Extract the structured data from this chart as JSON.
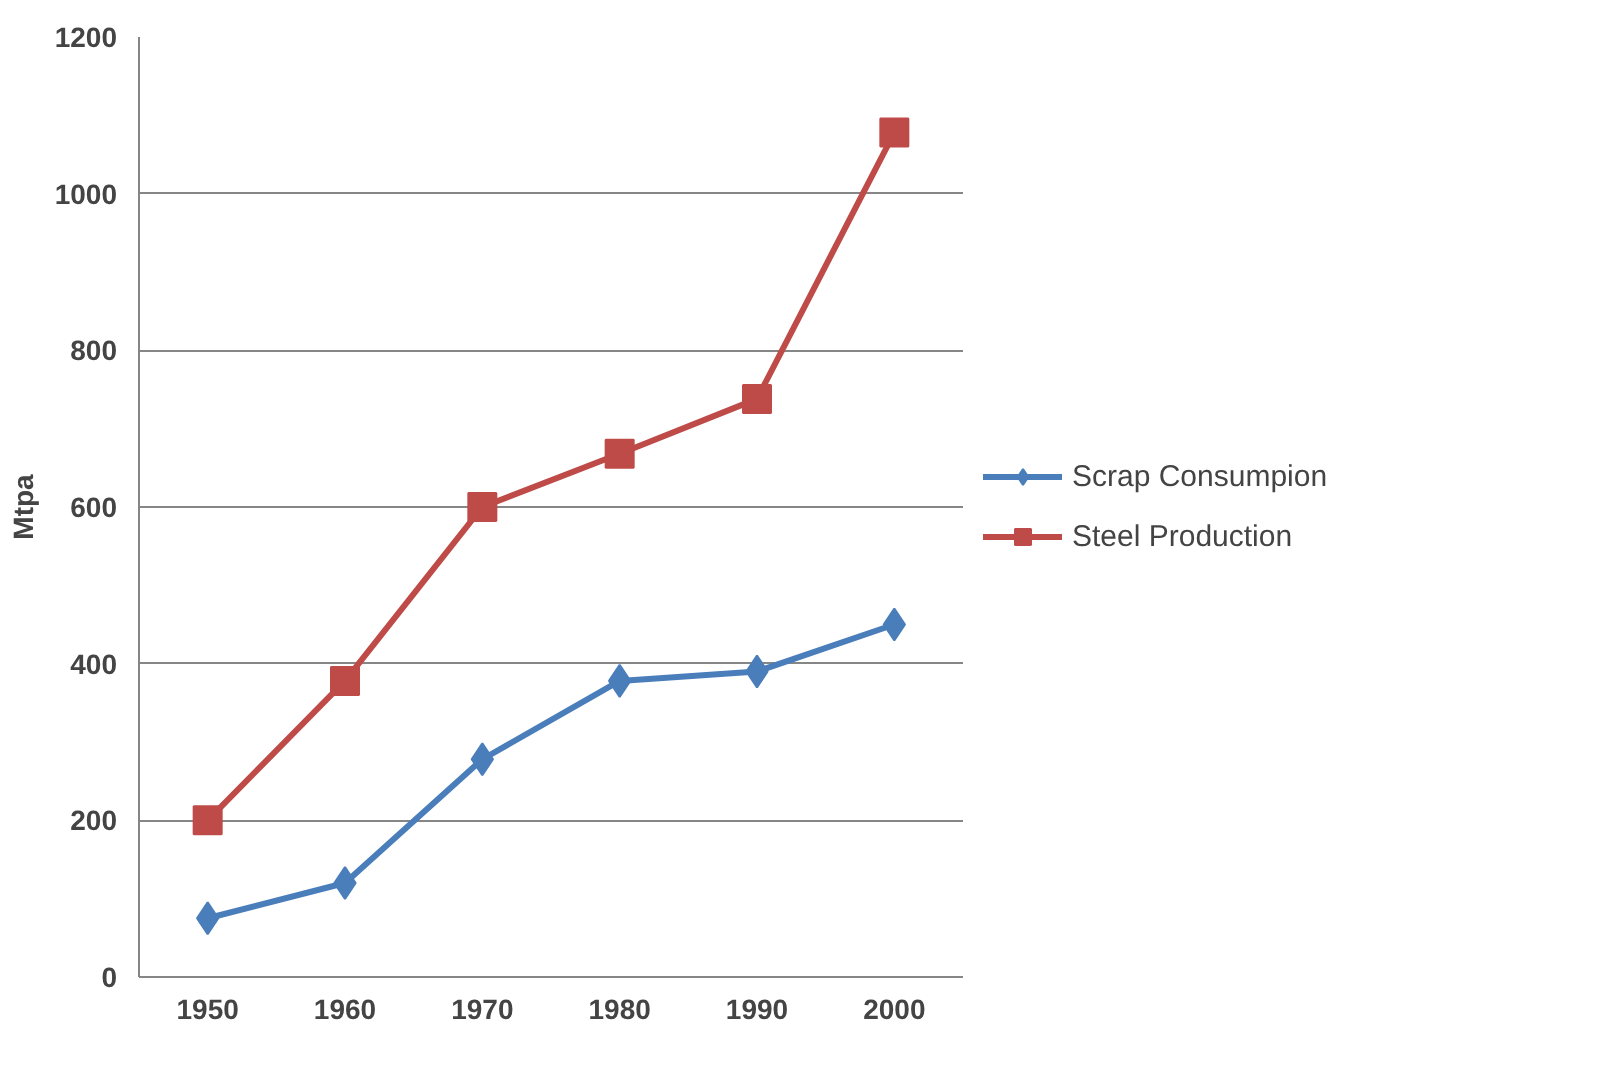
{
  "chart_data": {
    "type": "line",
    "ylabel": "Mtpa",
    "categories": [
      "1950",
      "1960",
      "1970",
      "1980",
      "1990",
      "2000"
    ],
    "series": [
      {
        "name": "Scrap Consumpion",
        "color": "#4a7ebb",
        "marker": "diamond",
        "values": [
          75,
          120,
          278,
          378,
          390,
          450
        ]
      },
      {
        "name": "Steel Production",
        "color": "#be4b48",
        "marker": "square",
        "values": [
          200,
          378,
          600,
          668,
          738,
          1078
        ]
      }
    ],
    "ylim": [
      0,
      1200
    ],
    "yticks": [
      0,
      200,
      400,
      600,
      800,
      1000,
      1200
    ],
    "grid": "y",
    "legend": "right"
  }
}
